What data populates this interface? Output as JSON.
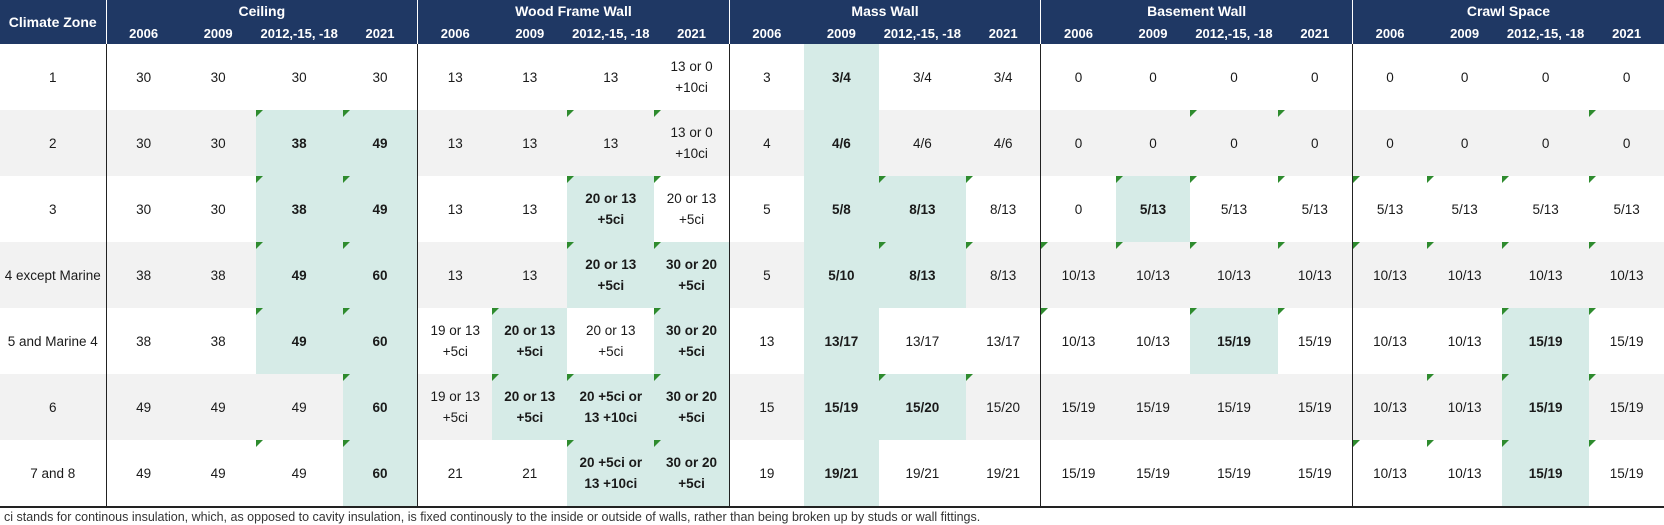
{
  "header": {
    "zone_label": "Climate Zone",
    "groups": [
      "Ceiling",
      "Wood Frame Wall",
      "Mass Wall",
      "Basement Wall",
      "Crawl Space"
    ],
    "years": [
      "2006",
      "2009",
      "2012,-15, -18",
      "2021"
    ]
  },
  "rows": [
    {
      "zone": "1",
      "cells": [
        {
          "lines": [
            "30"
          ]
        },
        {
          "lines": [
            "30"
          ]
        },
        {
          "lines": [
            "30"
          ]
        },
        {
          "lines": [
            "30"
          ]
        },
        {
          "lines": [
            "13"
          ]
        },
        {
          "lines": [
            "13"
          ]
        },
        {
          "lines": [
            "13"
          ]
        },
        {
          "lines": [
            "13 or 0",
            "+10ci"
          ]
        },
        {
          "lines": [
            "3"
          ]
        },
        {
          "lines": [
            "3/4"
          ],
          "hl": true,
          "bold": true
        },
        {
          "lines": [
            "3/4"
          ]
        },
        {
          "lines": [
            "3/4"
          ]
        },
        {
          "lines": [
            "0"
          ]
        },
        {
          "lines": [
            "0"
          ]
        },
        {
          "lines": [
            "0"
          ]
        },
        {
          "lines": [
            "0"
          ]
        },
        {
          "lines": [
            "0"
          ]
        },
        {
          "lines": [
            "0"
          ]
        },
        {
          "lines": [
            "0"
          ]
        },
        {
          "lines": [
            "0"
          ]
        }
      ]
    },
    {
      "zone": "2",
      "cells": [
        {
          "lines": [
            "30"
          ]
        },
        {
          "lines": [
            "30"
          ]
        },
        {
          "lines": [
            "38"
          ],
          "hl": true,
          "bold": true,
          "tri": true
        },
        {
          "lines": [
            "49"
          ],
          "hl": true,
          "bold": true,
          "tri": true
        },
        {
          "lines": [
            "13"
          ]
        },
        {
          "lines": [
            "13"
          ]
        },
        {
          "lines": [
            "13"
          ],
          "tri": true
        },
        {
          "lines": [
            "13 or 0",
            "+10ci"
          ],
          "tri": true
        },
        {
          "lines": [
            "4"
          ]
        },
        {
          "lines": [
            "4/6"
          ],
          "hl": true,
          "bold": true
        },
        {
          "lines": [
            "4/6"
          ]
        },
        {
          "lines": [
            "4/6"
          ]
        },
        {
          "lines": [
            "0"
          ]
        },
        {
          "lines": [
            "0"
          ]
        },
        {
          "lines": [
            "0"
          ],
          "tri": true
        },
        {
          "lines": [
            "0"
          ],
          "tri": true
        },
        {
          "lines": [
            "0"
          ]
        },
        {
          "lines": [
            "0"
          ]
        },
        {
          "lines": [
            "0"
          ]
        },
        {
          "lines": [
            "0"
          ],
          "tri": true
        }
      ]
    },
    {
      "zone": "3",
      "cells": [
        {
          "lines": [
            "30"
          ]
        },
        {
          "lines": [
            "30"
          ]
        },
        {
          "lines": [
            "38"
          ],
          "hl": true,
          "bold": true,
          "tri": true
        },
        {
          "lines": [
            "49"
          ],
          "hl": true,
          "bold": true,
          "tri": true
        },
        {
          "lines": [
            "13"
          ]
        },
        {
          "lines": [
            "13"
          ]
        },
        {
          "lines": [
            "20 or 13",
            "+5ci"
          ],
          "hl": true,
          "bold": true,
          "tri": true
        },
        {
          "lines": [
            "20 or 13",
            "+5ci"
          ],
          "tri": true
        },
        {
          "lines": [
            "5"
          ]
        },
        {
          "lines": [
            "5/8"
          ],
          "hl": true,
          "bold": true
        },
        {
          "lines": [
            "8/13"
          ],
          "hl": true,
          "bold": true,
          "tri": true
        },
        {
          "lines": [
            "8/13"
          ],
          "tri": true
        },
        {
          "lines": [
            "0"
          ]
        },
        {
          "lines": [
            "5/13"
          ],
          "hl": true,
          "bold": true,
          "tri": true
        },
        {
          "lines": [
            "5/13"
          ],
          "tri": true
        },
        {
          "lines": [
            "5/13"
          ],
          "tri": true
        },
        {
          "lines": [
            "5/13"
          ],
          "tri": true
        },
        {
          "lines": [
            "5/13"
          ],
          "tri": true
        },
        {
          "lines": [
            "5/13"
          ],
          "tri": true
        },
        {
          "lines": [
            "5/13"
          ],
          "tri": true
        }
      ]
    },
    {
      "zone": "4 except Marine",
      "cells": [
        {
          "lines": [
            "38"
          ]
        },
        {
          "lines": [
            "38"
          ]
        },
        {
          "lines": [
            "49"
          ],
          "hl": true,
          "bold": true,
          "tri": true
        },
        {
          "lines": [
            "60"
          ],
          "hl": true,
          "bold": true,
          "tri": true
        },
        {
          "lines": [
            "13"
          ]
        },
        {
          "lines": [
            "13"
          ]
        },
        {
          "lines": [
            "20 or 13",
            "+5ci"
          ],
          "hl": true,
          "bold": true,
          "tri": true
        },
        {
          "lines": [
            "30 or 20",
            "+5ci"
          ],
          "hl": true,
          "bold": true,
          "tri": true
        },
        {
          "lines": [
            "5"
          ]
        },
        {
          "lines": [
            "5/10"
          ],
          "hl": true,
          "bold": true
        },
        {
          "lines": [
            "8/13"
          ],
          "hl": true,
          "bold": true,
          "tri": true
        },
        {
          "lines": [
            "8/13"
          ],
          "tri": true
        },
        {
          "lines": [
            "10/13"
          ],
          "tri": true
        },
        {
          "lines": [
            "10/13"
          ],
          "tri": true
        },
        {
          "lines": [
            "10/13"
          ],
          "tri": true
        },
        {
          "lines": [
            "10/13"
          ],
          "tri": true
        },
        {
          "lines": [
            "10/13"
          ],
          "tri": true
        },
        {
          "lines": [
            "10/13"
          ],
          "tri": true
        },
        {
          "lines": [
            "10/13"
          ],
          "tri": true
        },
        {
          "lines": [
            "10/13"
          ],
          "tri": true
        }
      ]
    },
    {
      "zone": "5 and Marine 4",
      "cells": [
        {
          "lines": [
            "38"
          ]
        },
        {
          "lines": [
            "38"
          ]
        },
        {
          "lines": [
            "49"
          ],
          "hl": true,
          "bold": true,
          "tri": true
        },
        {
          "lines": [
            "60"
          ],
          "hl": true,
          "bold": true,
          "tri": true
        },
        {
          "lines": [
            "19 or 13",
            "+5ci"
          ]
        },
        {
          "lines": [
            "20 or 13",
            "+5ci"
          ],
          "hl": true,
          "bold": true,
          "tri": true
        },
        {
          "lines": [
            "20 or 13",
            "+5ci"
          ]
        },
        {
          "lines": [
            "30 or 20",
            "+5ci"
          ],
          "hl": true,
          "bold": true,
          "tri": true
        },
        {
          "lines": [
            "13"
          ]
        },
        {
          "lines": [
            "13/17"
          ],
          "hl": true,
          "bold": true
        },
        {
          "lines": [
            "13/17"
          ]
        },
        {
          "lines": [
            "13/17"
          ]
        },
        {
          "lines": [
            "10/13"
          ],
          "tri": true
        },
        {
          "lines": [
            "10/13"
          ]
        },
        {
          "lines": [
            "15/19"
          ],
          "hl": true,
          "bold": true,
          "tri": true
        },
        {
          "lines": [
            "15/19"
          ],
          "tri": true
        },
        {
          "lines": [
            "10/13"
          ]
        },
        {
          "lines": [
            "10/13"
          ]
        },
        {
          "lines": [
            "15/19"
          ],
          "hl": true,
          "bold": true,
          "tri": true
        },
        {
          "lines": [
            "15/19"
          ],
          "tri": true
        }
      ]
    },
    {
      "zone": "6",
      "cells": [
        {
          "lines": [
            "49"
          ]
        },
        {
          "lines": [
            "49"
          ]
        },
        {
          "lines": [
            "49"
          ]
        },
        {
          "lines": [
            "60"
          ],
          "hl": true,
          "bold": true,
          "tri": true
        },
        {
          "lines": [
            "19 or 13",
            "+5ci"
          ]
        },
        {
          "lines": [
            "20 or 13",
            "+5ci"
          ],
          "hl": true,
          "bold": true,
          "tri": true
        },
        {
          "lines": [
            "20 +5ci or",
            "13 +10ci"
          ],
          "hl": true,
          "bold": true,
          "tri": true
        },
        {
          "lines": [
            "30 or 20",
            "+5ci"
          ],
          "hl": true,
          "bold": true,
          "tri": true
        },
        {
          "lines": [
            "15"
          ]
        },
        {
          "lines": [
            "15/19"
          ],
          "hl": true,
          "bold": true
        },
        {
          "lines": [
            "15/20"
          ],
          "hl": true,
          "bold": true,
          "tri": true
        },
        {
          "lines": [
            "15/20"
          ],
          "tri": true
        },
        {
          "lines": [
            "15/19"
          ]
        },
        {
          "lines": [
            "15/19"
          ]
        },
        {
          "lines": [
            "15/19"
          ]
        },
        {
          "lines": [
            "15/19"
          ]
        },
        {
          "lines": [
            "10/13"
          ]
        },
        {
          "lines": [
            "10/13"
          ],
          "tri": true
        },
        {
          "lines": [
            "15/19"
          ],
          "hl": true,
          "bold": true,
          "tri": true
        },
        {
          "lines": [
            "15/19"
          ],
          "tri": true
        }
      ]
    },
    {
      "zone": "7 and 8",
      "cells": [
        {
          "lines": [
            "49"
          ]
        },
        {
          "lines": [
            "49"
          ]
        },
        {
          "lines": [
            "49"
          ],
          "tri": true
        },
        {
          "lines": [
            "60"
          ],
          "hl": true,
          "bold": true,
          "tri": true
        },
        {
          "lines": [
            "21"
          ]
        },
        {
          "lines": [
            "21"
          ]
        },
        {
          "lines": [
            "20 +5ci or",
            "13 +10ci"
          ],
          "hl": true,
          "bold": true,
          "tri": true
        },
        {
          "lines": [
            "30 or 20",
            "+5ci"
          ],
          "hl": true,
          "bold": true,
          "tri": true
        },
        {
          "lines": [
            "19"
          ]
        },
        {
          "lines": [
            "19/21"
          ],
          "hl": true,
          "bold": true
        },
        {
          "lines": [
            "19/21"
          ]
        },
        {
          "lines": [
            "19/21"
          ]
        },
        {
          "lines": [
            "15/19"
          ]
        },
        {
          "lines": [
            "15/19"
          ]
        },
        {
          "lines": [
            "15/19"
          ]
        },
        {
          "lines": [
            "15/19"
          ]
        },
        {
          "lines": [
            "10/13"
          ],
          "tri": true
        },
        {
          "lines": [
            "10/13"
          ],
          "tri": true
        },
        {
          "lines": [
            "15/19"
          ],
          "hl": true,
          "bold": true,
          "tri": true
        },
        {
          "lines": [
            "15/19"
          ],
          "tri": true
        }
      ]
    }
  ],
  "footnote": "ci stands for continous insulation, which, as opposed to cavity insulation, is fixed continously to the inside or outside of walls, rather than being broken up by studs or wall fittings."
}
